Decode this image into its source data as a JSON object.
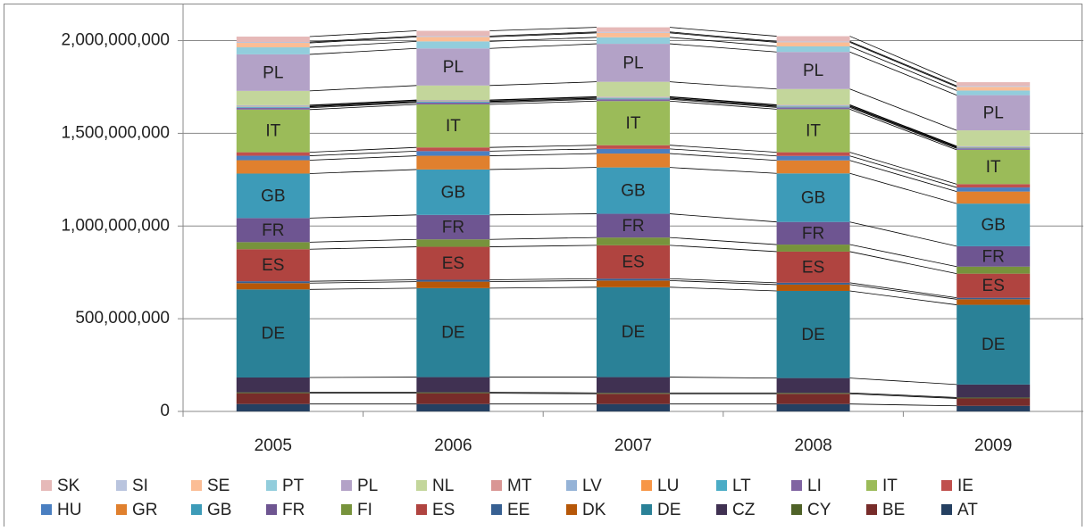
{
  "chart_data": {
    "type": "stacked-bar",
    "categories": [
      "2005",
      "2006",
      "2007",
      "2008",
      "2009"
    ],
    "ylim": [
      0,
      2200000000
    ],
    "yticks": [
      0,
      {
        "value": 500000000,
        "label": "500,000,000"
      },
      {
        "value": 1000000000,
        "label": "1,000,000,000"
      },
      {
        "value": 1500000000,
        "label": "1,500,000,000"
      },
      {
        "value": 2000000000,
        "label": "2,000,000,000"
      }
    ],
    "grid": true,
    "legend": "bottom",
    "series": [
      {
        "name": "AT",
        "color": "#254061",
        "values": [
          40000000,
          40000000,
          40000000,
          40000000,
          30000000
        ]
      },
      {
        "name": "BE",
        "color": "#772c2a",
        "values": [
          58000000,
          58000000,
          55000000,
          55000000,
          40000000
        ]
      },
      {
        "name": "CY",
        "color": "#4f6228",
        "values": [
          5000000,
          5000000,
          5000000,
          5000000,
          5000000
        ]
      },
      {
        "name": "CZ",
        "color": "#403152",
        "values": [
          80000000,
          82000000,
          85000000,
          80000000,
          70000000
        ]
      },
      {
        "name": "DE",
        "color": "#2a8197",
        "values": [
          475000000,
          480000000,
          485000000,
          470000000,
          430000000
        ]
      },
      {
        "name": "DK",
        "color": "#b65708",
        "values": [
          34000000,
          35000000,
          36000000,
          34000000,
          30000000
        ]
      },
      {
        "name": "EE",
        "color": "#376092",
        "values": [
          10000000,
          10000000,
          10000000,
          10000000,
          8000000
        ]
      },
      {
        "name": "ES",
        "color": "#b04440",
        "values": [
          173000000,
          178000000,
          180000000,
          168000000,
          130000000
        ]
      },
      {
        "name": "FI",
        "color": "#77933c",
        "values": [
          38000000,
          40000000,
          42000000,
          38000000,
          38000000
        ]
      },
      {
        "name": "FR",
        "color": "#6e5591",
        "values": [
          130000000,
          132000000,
          128000000,
          122000000,
          110000000
        ]
      },
      {
        "name": "GB",
        "color": "#3d9bb8",
        "values": [
          240000000,
          245000000,
          250000000,
          262000000,
          230000000
        ]
      },
      {
        "name": "GR",
        "color": "#e0802e",
        "values": [
          72000000,
          74000000,
          75000000,
          70000000,
          65000000
        ]
      },
      {
        "name": "HU",
        "color": "#4a7fc1",
        "values": [
          24000000,
          25000000,
          25000000,
          24000000,
          22000000
        ]
      },
      {
        "name": "IE",
        "color": "#c0504d",
        "values": [
          19000000,
          20000000,
          20000000,
          20000000,
          18000000
        ]
      },
      {
        "name": "IT",
        "color": "#9bbb59",
        "values": [
          230000000,
          232000000,
          238000000,
          232000000,
          185000000
        ]
      },
      {
        "name": "LI",
        "color": "#8064a2",
        "values": [
          10000000,
          10000000,
          10000000,
          10000000,
          8000000
        ]
      },
      {
        "name": "LT",
        "color": "#4bacc6",
        "values": [
          5000000,
          5000000,
          5000000,
          5000000,
          4000000
        ]
      },
      {
        "name": "LU",
        "color": "#f79646",
        "values": [
          2000000,
          2000000,
          2000000,
          2000000,
          2000000
        ]
      },
      {
        "name": "LV",
        "color": "#95b3d7",
        "values": [
          5000000,
          5000000,
          5000000,
          5000000,
          4000000
        ]
      },
      {
        "name": "MT",
        "color": "#d99694",
        "values": [
          2000000,
          2000000,
          2000000,
          2000000,
          2000000
        ]
      },
      {
        "name": "NL",
        "color": "#c3d69b",
        "values": [
          77000000,
          78000000,
          80000000,
          85000000,
          85000000
        ]
      },
      {
        "name": "PL",
        "color": "#b3a2c7",
        "values": [
          197000000,
          200000000,
          205000000,
          200000000,
          190000000
        ]
      },
      {
        "name": "PT",
        "color": "#92cddc",
        "values": [
          38000000,
          38000000,
          35000000,
          30000000,
          25000000
        ]
      },
      {
        "name": "SE",
        "color": "#fbbd95",
        "values": [
          24000000,
          24000000,
          24000000,
          22000000,
          20000000
        ]
      },
      {
        "name": "SI",
        "color": "#b9c4de",
        "values": [
          5000000,
          5000000,
          5000000,
          5000000,
          5000000
        ]
      },
      {
        "name": "SK",
        "color": "#e6b9b8",
        "values": [
          29000000,
          28000000,
          25000000,
          28000000,
          20000000
        ]
      }
    ]
  }
}
